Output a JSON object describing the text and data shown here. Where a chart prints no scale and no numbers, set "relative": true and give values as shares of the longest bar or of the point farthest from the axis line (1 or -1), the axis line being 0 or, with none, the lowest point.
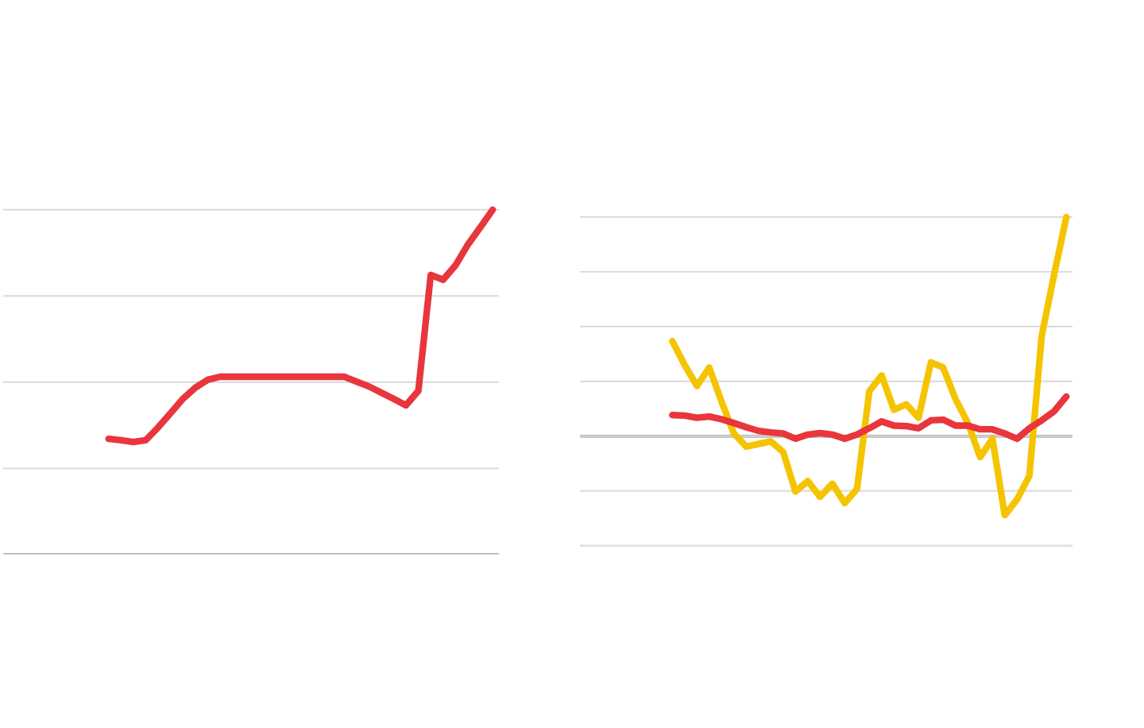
{
  "chart_data": [
    {
      "type": "line",
      "relative": true,
      "grid": "y",
      "categories": [
        null,
        null,
        null,
        null,
        null,
        null,
        null,
        null,
        null,
        null,
        null,
        null,
        null,
        null,
        null,
        null,
        null,
        null,
        null,
        null,
        null,
        null,
        null,
        null,
        null,
        null,
        null,
        null,
        null,
        null,
        null,
        null,
        null,
        null,
        null,
        null,
        null,
        null,
        null,
        null
      ],
      "series": [
        {
          "color": "#e8363c",
          "values": [
            null,
            null,
            null,
            null,
            null,
            null,
            null,
            null,
            0.336,
            0.332,
            0.327,
            0.332,
            0.369,
            0.41,
            0.452,
            0.484,
            0.507,
            0.516,
            0.516,
            0.516,
            0.516,
            0.516,
            0.516,
            0.516,
            0.516,
            0.516,
            0.516,
            0.516,
            0.502,
            0.488,
            0.47,
            0.452,
            0.433,
            0.475,
            0.811,
            0.797,
            0.839,
            0.899,
            0.949,
            1.0
          ]
        }
      ]
    },
    {
      "type": "line",
      "relative": true,
      "grid": "y",
      "categories": [
        null,
        null,
        null,
        null,
        null,
        null,
        null,
        null,
        null,
        null,
        null,
        null,
        null,
        null,
        null,
        null,
        null,
        null,
        null,
        null,
        null,
        null,
        null,
        null,
        null,
        null,
        null,
        null,
        null,
        null,
        null,
        null,
        null,
        null,
        null,
        null,
        null,
        null,
        null,
        null
      ],
      "series": [
        {
          "color": "#f5c400",
          "values": [
            null,
            null,
            null,
            null,
            null,
            null,
            null,
            0.434,
            0.325,
            0.229,
            0.313,
            0.157,
            0.012,
            -0.048,
            -0.036,
            -0.024,
            -0.072,
            -0.253,
            -0.205,
            -0.277,
            -0.217,
            -0.306,
            -0.241,
            0.205,
            0.277,
            0.12,
            0.145,
            0.084,
            0.337,
            0.313,
            0.169,
            0.06,
            -0.096,
            -0.012,
            -0.361,
            -0.289,
            -0.181,
            0.458,
            0.735,
            1.0
          ]
        },
        {
          "color": "#e8363c",
          "values": [
            null,
            null,
            null,
            null,
            null,
            null,
            null,
            0.096,
            0.094,
            0.084,
            0.089,
            0.077,
            0.06,
            0.041,
            0.024,
            0.017,
            0.012,
            -0.012,
            0.007,
            0.014,
            0.007,
            -0.012,
            0.007,
            0.036,
            0.067,
            0.048,
            0.046,
            0.036,
            0.072,
            0.075,
            0.048,
            0.048,
            0.031,
            0.031,
            0.012,
            -0.012,
            0.036,
            0.072,
            0.113,
            0.181
          ]
        }
      ]
    }
  ]
}
